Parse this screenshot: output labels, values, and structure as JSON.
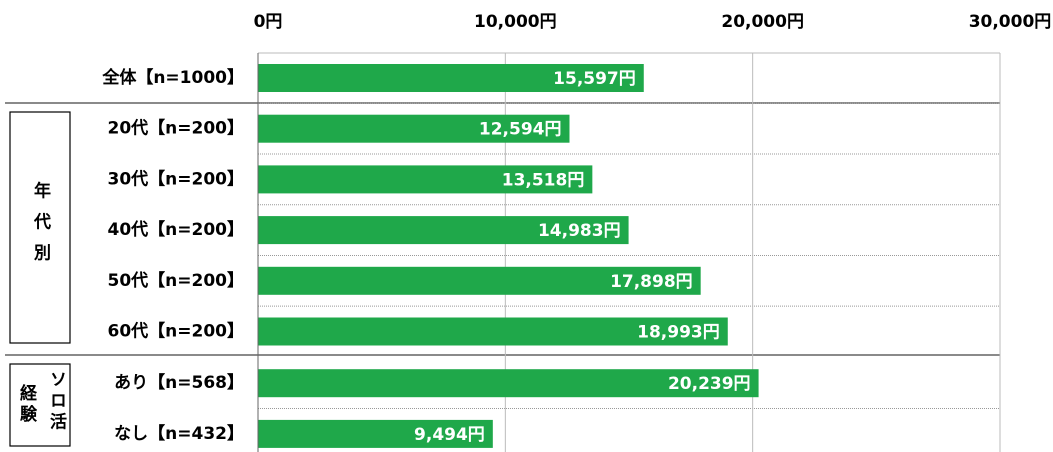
{
  "chart_data": {
    "type": "bar",
    "orientation": "horizontal",
    "categories": [
      "全体【n=1000】",
      "20代【n=200】",
      "30代【n=200】",
      "40代【n=200】",
      "50代【n=200】",
      "60代【n=200】",
      "あり【n=568】",
      "なし【n=432】"
    ],
    "values": [
      15597,
      12594,
      13518,
      14983,
      17898,
      18993,
      20239,
      9494
    ],
    "value_labels": [
      "15,597円",
      "12,594円",
      "13,518円",
      "14,983円",
      "17,898円",
      "18,993円",
      "20,239円",
      "9,494円"
    ],
    "color": "#1fa84a",
    "xlim": [
      0,
      30000
    ],
    "xticks": [
      {
        "value": 0,
        "label": "0円"
      },
      {
        "value": 10000,
        "label": "10,000円"
      },
      {
        "value": 20000,
        "label": "20,000円"
      },
      {
        "value": 30000,
        "label": "30,000円"
      }
    ],
    "grid": true,
    "groups": [
      {
        "label": [
          "年代別"
        ]
      },
      {
        "label": [
          "ソロ活",
          "経験"
        ]
      }
    ]
  }
}
